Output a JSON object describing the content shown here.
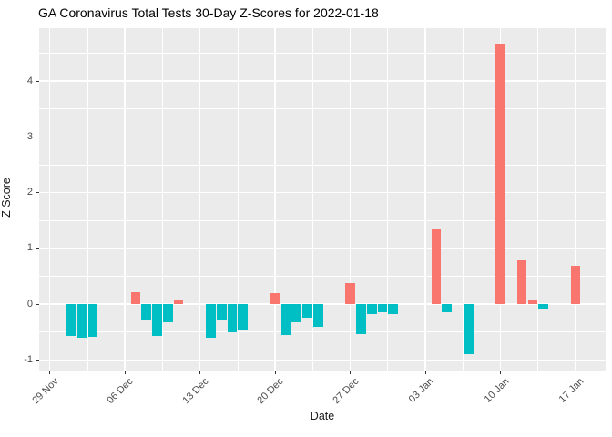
{
  "chart_data": {
    "type": "bar",
    "title": "GA Coronavirus Total Tests 30-Day Z-Scores for 2022-01-18",
    "xlabel": "Date",
    "ylabel": "Z Score",
    "legend": "none",
    "grid": "on",
    "panel_bg": "#EBEBEB",
    "grid_color": "#FFFFFF",
    "axis_text_color": "#4D4D4D",
    "positive_color": "#F8766D",
    "negative_color": "#00BFC4",
    "ylim": [
      -1.19,
      4.95
    ],
    "xlim_days": [
      -0.99,
      51.79
    ],
    "y_ticks": [
      -1,
      0,
      1,
      2,
      3,
      4
    ],
    "y_minor_ticks": [
      -0.5,
      0.5,
      1.5,
      2.5,
      3.5,
      4.5
    ],
    "x_ticks": [
      {
        "day": 0,
        "label": "29 Nov"
      },
      {
        "day": 7,
        "label": "06 Dec"
      },
      {
        "day": 14,
        "label": "13 Dec"
      },
      {
        "day": 21,
        "label": "20 Dec"
      },
      {
        "day": 28,
        "label": "27 Dec"
      },
      {
        "day": 35,
        "label": "03 Jan"
      },
      {
        "day": 42,
        "label": "10 Jan"
      },
      {
        "day": 49,
        "label": "17 Jan"
      }
    ],
    "x_minor_days": [
      3.5,
      10.5,
      17.5,
      24.5,
      31.5,
      38.5,
      45.5
    ],
    "bars": [
      {
        "date": "01 Dec",
        "day": 2,
        "value": -0.57
      },
      {
        "date": "02 Dec",
        "day": 3,
        "value": -0.6
      },
      {
        "date": "03 Dec",
        "day": 4,
        "value": -0.59
      },
      {
        "date": "07 Dec",
        "day": 8,
        "value": 0.21
      },
      {
        "date": "08 Dec",
        "day": 9,
        "value": -0.28
      },
      {
        "date": "09 Dec",
        "day": 10,
        "value": -0.57
      },
      {
        "date": "10 Dec",
        "day": 11,
        "value": -0.33
      },
      {
        "date": "11 Dec",
        "day": 12,
        "value": 0.07
      },
      {
        "date": "14 Dec",
        "day": 15,
        "value": -0.6
      },
      {
        "date": "15 Dec",
        "day": 16,
        "value": -0.28
      },
      {
        "date": "16 Dec",
        "day": 17,
        "value": -0.51
      },
      {
        "date": "17 Dec",
        "day": 18,
        "value": -0.47
      },
      {
        "date": "20 Dec",
        "day": 21,
        "value": 0.19
      },
      {
        "date": "21 Dec",
        "day": 22,
        "value": -0.56
      },
      {
        "date": "22 Dec",
        "day": 23,
        "value": -0.33
      },
      {
        "date": "23 Dec",
        "day": 24,
        "value": -0.25
      },
      {
        "date": "24 Dec",
        "day": 25,
        "value": -0.41
      },
      {
        "date": "27 Dec",
        "day": 28,
        "value": 0.38
      },
      {
        "date": "28 Dec",
        "day": 29,
        "value": -0.53
      },
      {
        "date": "29 Dec",
        "day": 30,
        "value": -0.17
      },
      {
        "date": "30 Dec",
        "day": 31,
        "value": -0.14
      },
      {
        "date": "31 Dec",
        "day": 32,
        "value": -0.18
      },
      {
        "date": "04 Jan",
        "day": 36,
        "value": 1.36
      },
      {
        "date": "05 Jan",
        "day": 37,
        "value": -0.15
      },
      {
        "date": "07 Jan",
        "day": 39,
        "value": -0.9
      },
      {
        "date": "10 Jan",
        "day": 42,
        "value": 4.67
      },
      {
        "date": "12 Jan",
        "day": 44,
        "value": 0.78
      },
      {
        "date": "13 Jan",
        "day": 45,
        "value": 0.07
      },
      {
        "date": "14 Jan",
        "day": 46,
        "value": -0.08
      },
      {
        "date": "17 Jan",
        "day": 49,
        "value": 0.68
      }
    ]
  }
}
